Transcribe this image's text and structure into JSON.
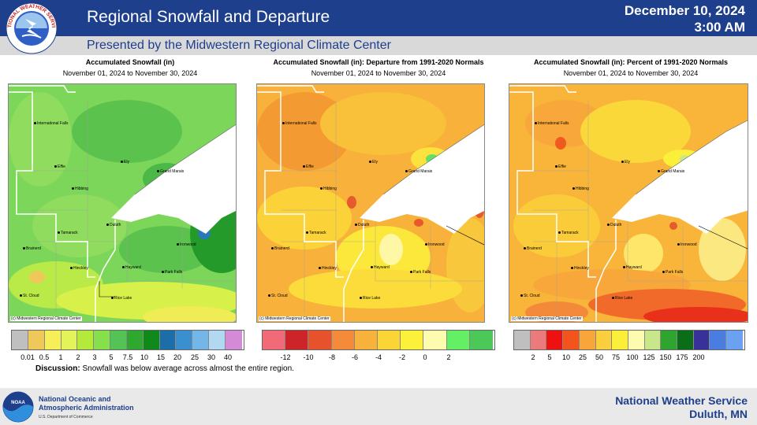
{
  "header": {
    "title": "Regional Snowfall and Departure",
    "date": "December 10, 2024",
    "time": "3:00 AM",
    "logo_text": "NATIONAL WEATHER SERVICE"
  },
  "subheader": "Presented by the Midwestern Regional Climate Center",
  "colors": {
    "header_bg": "#1e3f8c",
    "lake": "#ffffff",
    "state_border": "#ffffff"
  },
  "panels": [
    {
      "title": "Accumulated Snowfall (in)",
      "range": "November 01, 2024 to November 30, 2024",
      "credit": "(c) Midwestern Regional Climate Center",
      "legend_colors": [
        "#bfbfbf",
        "#eec95a",
        "#f7ef57",
        "#e2f45a",
        "#b5ea3b",
        "#86e04e",
        "#55c255",
        "#2ea82e",
        "#0f8a1a",
        "#1c6ea8",
        "#3a8fd0",
        "#74b6e8",
        "#b2d8f2",
        "#d58ad8"
      ],
      "legend_labels": [
        "0.01",
        "0.5",
        "1",
        "2",
        "3",
        "5",
        "7.5",
        "10",
        "15",
        "20",
        "25",
        "30",
        "40"
      ]
    },
    {
      "title": "Accumulated Snowfall (in): Departure from 1991-2020 Normals",
      "range": "November 01, 2024 to November 30, 2024",
      "credit": "(c) Midwestern Regional Climate Center",
      "legend_colors": [
        "#f06a78",
        "#cc2428",
        "#e5522c",
        "#f48a3a",
        "#f7b23b",
        "#fbd436",
        "#fbf03a",
        "#fdfcae",
        "#64f064",
        "#4cc85a"
      ],
      "legend_labels": [
        "-12",
        "-10",
        "-8",
        "-6",
        "-4",
        "-2",
        "0",
        "2"
      ]
    },
    {
      "title": "Accumulated Snowfall (in): Percent of 1991-2020 Normals",
      "range": "November 01, 2024 to November 30, 2024",
      "credit": "(c) Midwestern Regional Climate Center",
      "legend_colors": [
        "#bfbfbf",
        "#ec7a7a",
        "#ef1010",
        "#f3541d",
        "#f8a63a",
        "#fbcf3c",
        "#fbef3a",
        "#fdfcae",
        "#c7e78a",
        "#2fa52f",
        "#0a6e18",
        "#38319a",
        "#4a7de0",
        "#6aa1f0"
      ],
      "legend_labels": [
        "2",
        "5",
        "10",
        "25",
        "50",
        "75",
        "100",
        "125",
        "150",
        "175",
        "200"
      ]
    }
  ],
  "cities": {
    "international_falls": "International Falls",
    "effie": "Effie",
    "ely": "Ely",
    "grand_marais": "Grand Marais",
    "hibbing": "Hibbing",
    "duluth": "Duluth",
    "tamarack": "Tamarack",
    "ironwood": "Ironwood",
    "brainerd": "Brainerd",
    "hinckley": "Hinckley",
    "hayward": "Hayward",
    "park_falls": "Park Falls",
    "st_cloud": "St. Cloud",
    "rice_lake": "Rice Lake"
  },
  "discussion": {
    "label": "Discussion:",
    "text": "Snowfall was below average across almost  the entire region."
  },
  "footer": {
    "noaa_line1": "National Oceanic and",
    "noaa_line2": "Atmospheric Administration",
    "noaa_dept": "U.S. Department of Commerce",
    "noaa_logo_text": "NOAA",
    "office_line1": "National  Weather  Service",
    "office_line2": "Duluth,  MN"
  }
}
